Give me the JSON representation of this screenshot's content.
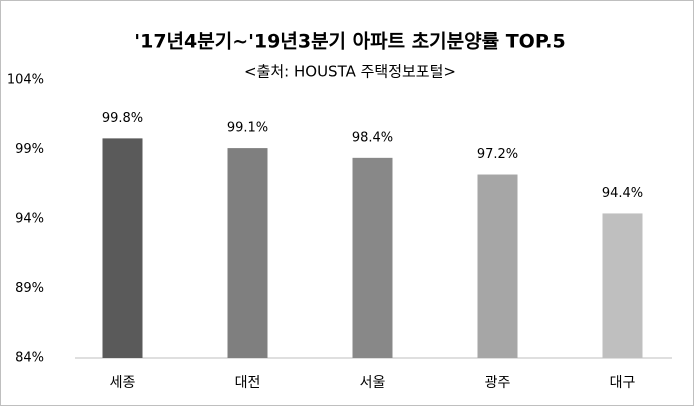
{
  "chart_data": {
    "type": "bar",
    "title": "'17년4분기~'19년3분기 아파트 초기분양률 TOP.5",
    "subtitle": "<출처: HOUSTA 주택정보포털>",
    "categories": [
      "세종",
      "대전",
      "서울",
      "광주",
      "대구"
    ],
    "values": [
      99.8,
      99.1,
      98.4,
      97.2,
      94.4
    ],
    "value_labels": [
      "99.8%",
      "99.1%",
      "98.4%",
      "97.2%",
      "94.4%"
    ],
    "colors": [
      "#5a5a5a",
      "#7f7f7f",
      "#888888",
      "#a6a6a6",
      "#bfbfbf"
    ],
    "ylim": [
      84,
      104
    ],
    "yticks": [
      {
        "value": 84,
        "label": "84%"
      },
      {
        "value": 89,
        "label": "89%"
      },
      {
        "value": 94,
        "label": "94%"
      },
      {
        "value": 99,
        "label": "99%"
      },
      {
        "value": 104,
        "label": "104%"
      }
    ],
    "grid": false
  }
}
